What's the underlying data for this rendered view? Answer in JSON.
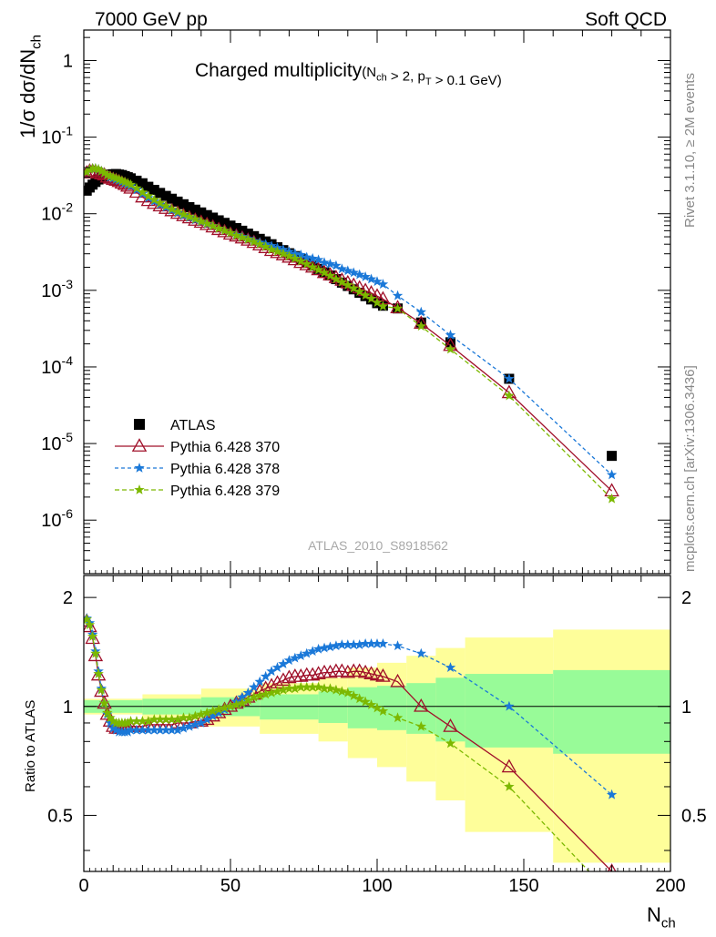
{
  "header": {
    "left": "7000 GeV pp",
    "right": "Soft QCD"
  },
  "side": {
    "rivet": "Rivet 3.1.10, ≥ 2M events",
    "mcplots": "mcplots.cern.ch [arXiv:1306.3436]"
  },
  "watermark": "ATLAS_2010_S8918562",
  "chart_data": [
    {
      "type": "scatter",
      "title": "Charged multiplicity",
      "title_sub": "(N_ch > 2, p_T > 0.1 GeV)",
      "ylabel": "1/σ dσ/dN_ch",
      "yscale": "log",
      "ylim": [
        2e-07,
        2.5
      ],
      "xlim": [
        0,
        200
      ],
      "legend_position": "bottom-left",
      "y_tick_labels": [
        "1",
        "10^-1",
        "10^-2",
        "10^-3",
        "10^-4",
        "10^-5",
        "10^-6"
      ],
      "legend": [
        "ATLAS",
        "Pythia 6.428 370",
        "Pythia 6.428 378",
        "Pythia 6.428 379"
      ],
      "series": [
        {
          "name": "ATLAS",
          "color": "#000000",
          "marker": "square",
          "x": [
            1,
            2,
            3,
            4,
            5,
            6,
            7,
            8,
            9,
            10,
            11,
            12,
            13,
            14,
            15,
            16,
            18,
            20,
            22,
            24,
            26,
            28,
            30,
            32,
            34,
            36,
            38,
            40,
            42,
            44,
            46,
            48,
            50,
            52,
            54,
            56,
            58,
            60,
            62,
            64,
            66,
            68,
            70,
            72,
            74,
            76,
            78,
            80,
            82,
            84,
            86,
            88,
            90,
            92,
            94,
            96,
            98,
            100,
            102,
            107,
            115,
            125,
            145,
            180
          ],
          "y": [
            0.02,
            0.022,
            0.024,
            0.026,
            0.028,
            0.03,
            0.031,
            0.032,
            0.0325,
            0.0328,
            0.033,
            0.0325,
            0.032,
            0.031,
            0.03,
            0.029,
            0.027,
            0.025,
            0.0225,
            0.0205,
            0.0187,
            0.0171,
            0.0157,
            0.0144,
            0.0133,
            0.0122,
            0.0113,
            0.0104,
            0.0096,
            0.0089,
            0.0082,
            0.0076,
            0.007,
            0.0065,
            0.006,
            0.0055,
            0.0051,
            0.0047,
            0.00435,
            0.004,
            0.00365,
            0.00335,
            0.00305,
            0.0028,
            0.00255,
            0.0023,
            0.0021,
            0.0019,
            0.00172,
            0.00156,
            0.0014,
            0.00126,
            0.00114,
            0.00103,
            0.00093,
            0.00084,
            0.00076,
            0.00068,
            0.00063,
            0.00058,
            0.00038,
            0.00021,
            7e-05,
            6.9e-06
          ]
        },
        {
          "name": "Pythia 6.428 370",
          "color": "#a0102a",
          "marker": "triangle",
          "x": [
            1,
            2,
            3,
            4,
            5,
            6,
            7,
            8,
            9,
            10,
            11,
            12,
            13,
            14,
            15,
            16,
            18,
            20,
            22,
            24,
            26,
            28,
            30,
            32,
            34,
            36,
            38,
            40,
            42,
            44,
            46,
            48,
            50,
            52,
            54,
            56,
            58,
            60,
            62,
            64,
            66,
            68,
            70,
            72,
            74,
            76,
            78,
            80,
            82,
            84,
            86,
            88,
            90,
            92,
            94,
            96,
            98,
            100,
            102,
            107,
            115,
            125,
            145,
            180
          ],
          "y": [
            0.034,
            0.036,
            0.036,
            0.0355,
            0.034,
            0.033,
            0.032,
            0.03,
            0.029,
            0.028,
            0.0272,
            0.0262,
            0.025,
            0.024,
            0.0228,
            0.0215,
            0.019,
            0.0165,
            0.0148,
            0.0136,
            0.0126,
            0.0117,
            0.0109,
            0.0101,
            0.0094,
            0.0088,
            0.0082,
            0.0077,
            0.0072,
            0.0067,
            0.0062,
            0.0058,
            0.0054,
            0.0051,
            0.0048,
            0.0045,
            0.0042,
            0.0039,
            0.0036,
            0.0033,
            0.0031,
            0.0029,
            0.0027,
            0.0025,
            0.0023,
            0.00215,
            0.002,
            0.00185,
            0.0017,
            0.00158,
            0.00146,
            0.00135,
            0.00125,
            0.00116,
            0.00107,
            0.00099,
            0.00092,
            0.00084,
            0.00077,
            0.00059,
            0.00037,
            0.00019,
            4.6e-05,
            2.4e-06
          ]
        },
        {
          "name": "Pythia 6.428 378",
          "color": "#1a78d8",
          "marker": "star",
          "x": [
            1,
            2,
            3,
            4,
            5,
            6,
            7,
            8,
            9,
            10,
            11,
            12,
            13,
            14,
            15,
            16,
            18,
            20,
            22,
            24,
            26,
            28,
            30,
            32,
            34,
            36,
            38,
            40,
            42,
            44,
            46,
            48,
            50,
            52,
            54,
            56,
            58,
            60,
            62,
            64,
            66,
            68,
            70,
            72,
            74,
            76,
            78,
            80,
            82,
            84,
            86,
            88,
            90,
            92,
            94,
            96,
            98,
            100,
            102,
            107,
            115,
            125,
            145,
            180
          ],
          "y": [
            0.035,
            0.038,
            0.039,
            0.039,
            0.038,
            0.036,
            0.034,
            0.032,
            0.03,
            0.029,
            0.028,
            0.027,
            0.026,
            0.025,
            0.024,
            0.023,
            0.0205,
            0.0182,
            0.0161,
            0.0145,
            0.0132,
            0.0121,
            0.0111,
            0.0102,
            0.0095,
            0.0089,
            0.0083,
            0.0078,
            0.0073,
            0.0069,
            0.0064,
            0.006,
            0.0056,
            0.0053,
            0.005,
            0.0047,
            0.0044,
            0.0042,
            0.004,
            0.0038,
            0.0036,
            0.0034,
            0.0032,
            0.003,
            0.0029,
            0.0027,
            0.0026,
            0.0025,
            0.0023,
            0.0022,
            0.0021,
            0.0019,
            0.0018,
            0.0017,
            0.0016,
            0.0015,
            0.0014,
            0.0013,
            0.0012,
            0.00085,
            0.00052,
            0.00026,
            7e-05,
            3.9e-06
          ]
        },
        {
          "name": "Pythia 6.428 379",
          "color": "#7cb800",
          "marker": "star",
          "x": [
            1,
            2,
            3,
            4,
            5,
            6,
            7,
            8,
            9,
            10,
            11,
            12,
            13,
            14,
            15,
            16,
            18,
            20,
            22,
            24,
            26,
            28,
            30,
            32,
            34,
            36,
            38,
            40,
            42,
            44,
            46,
            48,
            50,
            52,
            54,
            56,
            58,
            60,
            62,
            64,
            66,
            68,
            70,
            72,
            74,
            76,
            78,
            80,
            82,
            84,
            86,
            88,
            90,
            92,
            94,
            96,
            98,
            100,
            102,
            107,
            115,
            125,
            145,
            180
          ],
          "y": [
            0.035,
            0.038,
            0.039,
            0.039,
            0.038,
            0.036,
            0.034,
            0.032,
            0.031,
            0.03,
            0.029,
            0.028,
            0.027,
            0.026,
            0.025,
            0.024,
            0.0215,
            0.019,
            0.017,
            0.0152,
            0.0138,
            0.0126,
            0.0115,
            0.0106,
            0.0098,
            0.0091,
            0.0085,
            0.0079,
            0.0074,
            0.0069,
            0.0064,
            0.006,
            0.0056,
            0.0052,
            0.0049,
            0.0046,
            0.0043,
            0.004,
            0.0037,
            0.0034,
            0.0032,
            0.003,
            0.0028,
            0.0026,
            0.0024,
            0.0022,
            0.002,
            0.00185,
            0.0017,
            0.00155,
            0.0014,
            0.00128,
            0.00117,
            0.00106,
            0.00096,
            0.00086,
            0.00078,
            0.00069,
            0.00062,
            0.00058,
            0.00034,
            0.00017,
            4.2e-05,
            1.9e-06
          ]
        }
      ]
    },
    {
      "type": "scatter",
      "ylabel": "Ratio to ATLAS",
      "xlabel": "N_ch",
      "xlim": [
        0,
        200
      ],
      "ylim": [
        0.35,
        2.3
      ],
      "x_tick_labels": [
        "0",
        "50",
        "100",
        "150",
        "200"
      ],
      "y_tick_labels": [
        "0.5",
        "1",
        "2"
      ],
      "reference_line": 1,
      "uncertainty_bands": {
        "edges": [
          0,
          20,
          40,
          60,
          80,
          90,
          100,
          110,
          120,
          130,
          160,
          200
        ],
        "inner": [
          0.04,
          0.05,
          0.06,
          0.08,
          0.1,
          0.13,
          0.14,
          0.16,
          0.2,
          0.23,
          0.26
        ],
        "outer": [
          0.05,
          0.08,
          0.12,
          0.16,
          0.2,
          0.28,
          0.32,
          0.38,
          0.45,
          0.55,
          0.63
        ],
        "inner_color": "#98fb98",
        "outer_color": "#fefe9a"
      },
      "series": [
        {
          "name": "Pythia 6.428 370",
          "color": "#a0102a",
          "marker": "triangle",
          "x": [
            1,
            2,
            3,
            4,
            5,
            6,
            7,
            8,
            9,
            10,
            11,
            12,
            13,
            14,
            15,
            16,
            18,
            20,
            22,
            24,
            26,
            28,
            30,
            32,
            34,
            36,
            38,
            40,
            42,
            44,
            46,
            48,
            50,
            52,
            54,
            56,
            58,
            60,
            62,
            64,
            66,
            68,
            70,
            72,
            74,
            76,
            78,
            80,
            82,
            84,
            86,
            88,
            90,
            92,
            94,
            96,
            98,
            100,
            102,
            107,
            115,
            125,
            145,
            180
          ],
          "y": [
            1.72,
            1.66,
            1.54,
            1.38,
            1.22,
            1.1,
            1.02,
            0.95,
            0.91,
            0.88,
            0.87,
            0.87,
            0.87,
            0.88,
            0.88,
            0.88,
            0.88,
            0.88,
            0.89,
            0.89,
            0.89,
            0.89,
            0.89,
            0.9,
            0.9,
            0.9,
            0.91,
            0.91,
            0.92,
            0.94,
            0.96,
            0.98,
            1.0,
            1.02,
            1.04,
            1.06,
            1.08,
            1.1,
            1.12,
            1.14,
            1.16,
            1.18,
            1.2,
            1.21,
            1.21,
            1.22,
            1.22,
            1.23,
            1.24,
            1.24,
            1.25,
            1.25,
            1.24,
            1.25,
            1.25,
            1.24,
            1.23,
            1.22,
            1.21,
            1.17,
            1.0,
            0.88,
            0.68,
            0.35
          ]
        },
        {
          "name": "Pythia 6.428 378",
          "color": "#1a78d8",
          "marker": "star",
          "x": [
            1,
            2,
            3,
            4,
            5,
            6,
            7,
            8,
            9,
            10,
            11,
            12,
            13,
            14,
            15,
            16,
            18,
            20,
            22,
            24,
            26,
            28,
            30,
            32,
            34,
            36,
            38,
            40,
            42,
            44,
            46,
            48,
            50,
            52,
            54,
            56,
            58,
            60,
            62,
            64,
            66,
            68,
            70,
            72,
            74,
            76,
            78,
            80,
            82,
            84,
            86,
            88,
            90,
            92,
            94,
            96,
            98,
            100,
            102,
            107,
            115,
            125,
            145,
            180
          ],
          "y": [
            1.75,
            1.7,
            1.58,
            1.42,
            1.25,
            1.12,
            1.02,
            0.95,
            0.9,
            0.87,
            0.86,
            0.85,
            0.85,
            0.85,
            0.85,
            0.86,
            0.86,
            0.86,
            0.86,
            0.86,
            0.86,
            0.86,
            0.86,
            0.86,
            0.87,
            0.88,
            0.89,
            0.9,
            0.92,
            0.94,
            0.96,
            0.98,
            1.0,
            1.03,
            1.06,
            1.09,
            1.13,
            1.17,
            1.21,
            1.25,
            1.28,
            1.31,
            1.34,
            1.36,
            1.38,
            1.4,
            1.42,
            1.44,
            1.45,
            1.46,
            1.47,
            1.48,
            1.48,
            1.48,
            1.48,
            1.49,
            1.49,
            1.49,
            1.49,
            1.47,
            1.4,
            1.28,
            1.0,
            0.57
          ]
        },
        {
          "name": "Pythia 6.428 379",
          "color": "#7cb800",
          "marker": "star",
          "x": [
            1,
            2,
            3,
            4,
            5,
            6,
            7,
            8,
            9,
            10,
            11,
            12,
            13,
            14,
            15,
            16,
            18,
            20,
            22,
            24,
            26,
            28,
            30,
            32,
            34,
            36,
            38,
            40,
            42,
            44,
            46,
            48,
            50,
            52,
            54,
            56,
            58,
            60,
            62,
            64,
            66,
            68,
            70,
            72,
            74,
            76,
            78,
            80,
            82,
            84,
            86,
            88,
            90,
            92,
            94,
            96,
            98,
            100,
            102,
            107,
            115,
            125,
            145,
            180
          ],
          "y": [
            1.74,
            1.68,
            1.56,
            1.4,
            1.23,
            1.11,
            1.02,
            0.96,
            0.93,
            0.91,
            0.9,
            0.9,
            0.9,
            0.9,
            0.9,
            0.91,
            0.91,
            0.91,
            0.91,
            0.92,
            0.92,
            0.92,
            0.92,
            0.92,
            0.93,
            0.93,
            0.94,
            0.95,
            0.96,
            0.97,
            0.98,
            0.99,
            1.0,
            1.01,
            1.02,
            1.04,
            1.06,
            1.07,
            1.08,
            1.09,
            1.1,
            1.11,
            1.12,
            1.12,
            1.13,
            1.13,
            1.13,
            1.13,
            1.12,
            1.12,
            1.11,
            1.1,
            1.09,
            1.07,
            1.05,
            1.03,
            1.01,
            0.99,
            0.97,
            0.93,
            0.88,
            0.79,
            0.6,
            0.3
          ]
        }
      ]
    }
  ]
}
